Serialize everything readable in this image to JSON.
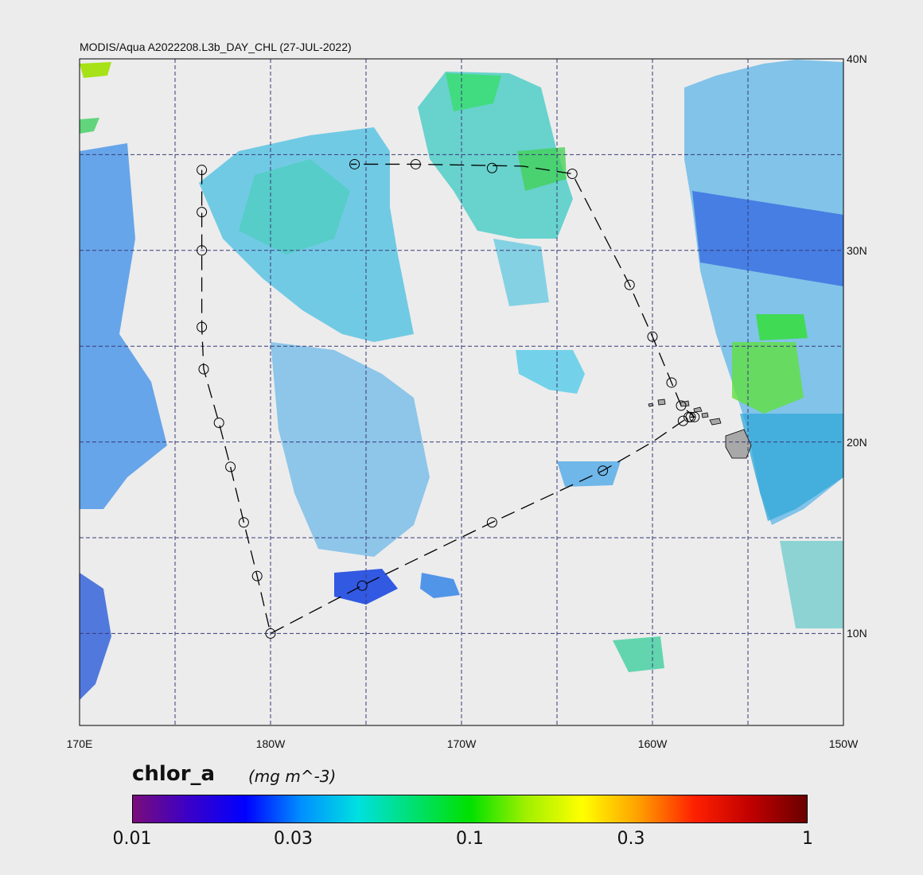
{
  "title": "MODIS/Aqua A2022208.L3b_DAY_CHL (27-JUL-2022)",
  "map": {
    "lon_labels": [
      {
        "text": "170E",
        "lon": 170
      },
      {
        "text": "180W",
        "lon": 180
      },
      {
        "text": "170W",
        "lon": 190
      },
      {
        "text": "160W",
        "lon": 200
      },
      {
        "text": "150W",
        "lon": 210
      }
    ],
    "lat_labels": [
      {
        "text": "40N",
        "lat": 40
      },
      {
        "text": "30N",
        "lat": 30
      },
      {
        "text": "20N",
        "lat": 20
      },
      {
        "text": "10N",
        "lat": 10
      }
    ],
    "lon_range": [
      170,
      210
    ],
    "lat_range": [
      5.2,
      40
    ],
    "grid_lons": [
      175,
      180,
      185,
      190,
      195,
      200,
      205
    ],
    "grid_lats": [
      35,
      30,
      25,
      20,
      15,
      10
    ],
    "land_color": "#a8a8a8",
    "track_points": [
      [
        176.4,
        34.2
      ],
      [
        176.4,
        32.0
      ],
      [
        176.4,
        30.0
      ],
      [
        176.4,
        26.0
      ],
      [
        176.5,
        23.8
      ],
      [
        177.3,
        21.0
      ],
      [
        177.9,
        18.7
      ],
      [
        178.6,
        15.8
      ],
      [
        179.3,
        13.0
      ],
      [
        180.0,
        10.0
      ],
      [
        184.8,
        12.5
      ],
      [
        191.6,
        15.8
      ],
      [
        197.4,
        18.5
      ],
      [
        200.0,
        20.0
      ],
      [
        201.6,
        21.1
      ],
      [
        201.9,
        21.3
      ],
      [
        202.0,
        21.3
      ],
      [
        202.2,
        21.3
      ],
      [
        201.5,
        21.9
      ],
      [
        201.0,
        23.1
      ],
      [
        200.0,
        25.5
      ],
      [
        198.8,
        28.2
      ],
      [
        195.8,
        34.0
      ],
      [
        193.2,
        34.4
      ],
      [
        187.6,
        34.5
      ],
      [
        184.2,
        34.5
      ]
    ],
    "track_circles": [
      [
        176.4,
        34.2
      ],
      [
        176.4,
        32.0
      ],
      [
        176.4,
        30.0
      ],
      [
        176.4,
        26.0
      ],
      [
        176.5,
        23.8
      ],
      [
        177.3,
        21.0
      ],
      [
        177.9,
        18.7
      ],
      [
        178.6,
        15.8
      ],
      [
        179.3,
        13.0
      ],
      [
        180.0,
        10.0
      ],
      [
        184.8,
        12.5
      ],
      [
        191.6,
        15.8
      ],
      [
        197.4,
        18.5
      ],
      [
        201.6,
        21.1
      ],
      [
        201.9,
        21.3
      ],
      [
        202.0,
        21.3
      ],
      [
        202.2,
        21.3
      ],
      [
        201.5,
        21.9
      ],
      [
        201.0,
        23.1
      ],
      [
        200.0,
        25.5
      ],
      [
        198.8,
        28.2
      ],
      [
        195.8,
        34.0
      ],
      [
        191.6,
        34.3
      ],
      [
        187.6,
        34.5
      ],
      [
        184.4,
        34.5
      ]
    ]
  },
  "colorbar": {
    "title": "chlor_a",
    "units": "(mg m^-3)",
    "ticks": [
      {
        "label": "0.01",
        "value": 0.01
      },
      {
        "label": "0.03",
        "value": 0.03
      },
      {
        "label": "0.1",
        "value": 0.1
      },
      {
        "label": "0.3",
        "value": 0.3
      },
      {
        "label": "1",
        "value": 1
      }
    ],
    "range": [
      0.01,
      1
    ],
    "scale": "log",
    "colors": [
      "#7a0d7a",
      "#3a00c8",
      "#0000ff",
      "#0090ff",
      "#00e0e0",
      "#00e070",
      "#00e000",
      "#a0f000",
      "#ffff00",
      "#ffa000",
      "#ff2000",
      "#c00000",
      "#6a0000"
    ]
  }
}
